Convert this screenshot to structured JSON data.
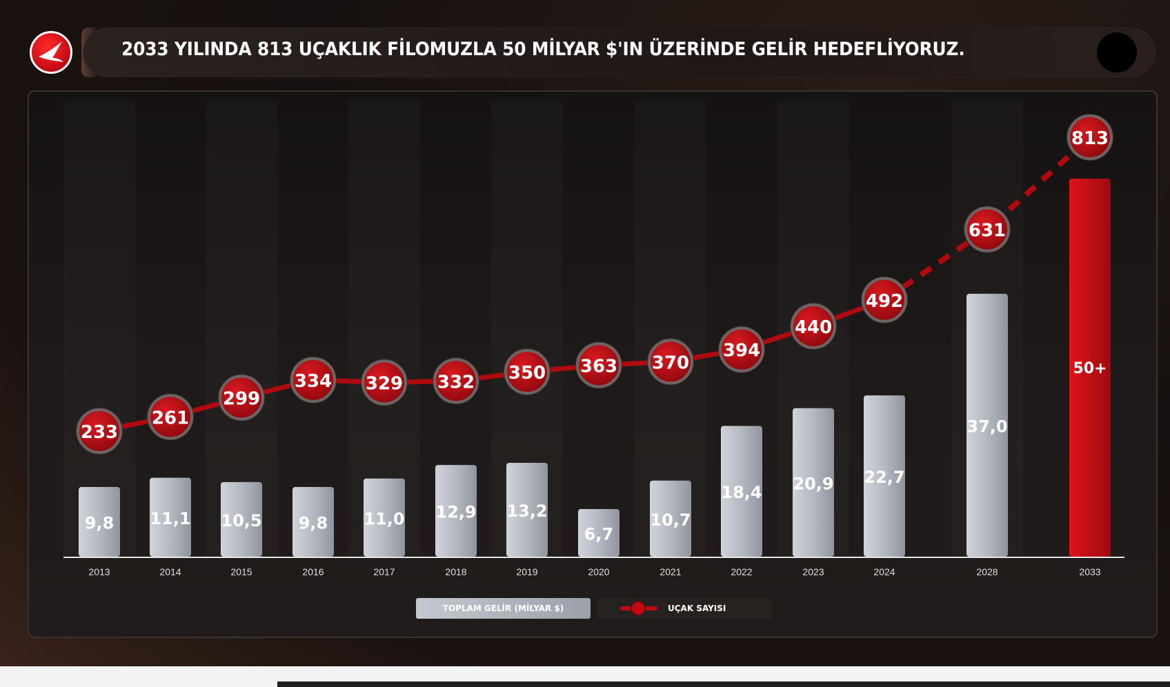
{
  "header": {
    "title": "2033 YILINDA 813 UÇAKLIK FİLOMUZLA 50 MİLYAR $'IN ÜZERİNDE GELİR HEDEFLİYORUZ."
  },
  "colors": {
    "accent_red": "#c30a12",
    "bar_gray": "#a9aeb8",
    "highlight_bar": "#d10f17"
  },
  "icons": {
    "logo": "airline-bird-logo-icon",
    "legend_line": "line-with-dot-icon"
  },
  "chart_data": {
    "type": "bar",
    "categories": [
      "2013",
      "2014",
      "2015",
      "2016",
      "2017",
      "2018",
      "2019",
      "2020",
      "2021",
      "2022",
      "2023",
      "2024",
      "2028",
      "2033"
    ],
    "title": "",
    "xlabel": "",
    "ylabel": "",
    "series": [
      {
        "name": "TOPLAM GELİR (MİLYAR $)",
        "type": "bar",
        "values": [
          9.8,
          11.1,
          10.5,
          9.8,
          11.0,
          12.9,
          13.2,
          6.7,
          10.7,
          18.4,
          20.9,
          22.7,
          37.0,
          50
        ],
        "labels": [
          "9,8",
          "11,1",
          "10,5",
          "9,8",
          "11,0",
          "12,9",
          "13,2",
          "6,7",
          "10,7",
          "18,4",
          "20,9",
          "22,7",
          "37,0",
          "50+"
        ],
        "highlight_index": 13
      },
      {
        "name": "UÇAK SAYISI",
        "type": "line",
        "values": [
          233,
          261,
          299,
          334,
          329,
          332,
          350,
          363,
          370,
          394,
          440,
          492,
          631,
          813
        ],
        "labels": [
          "233",
          "261",
          "299",
          "334",
          "329",
          "332",
          "350",
          "363",
          "370",
          "394",
          "440",
          "492",
          "631",
          "813"
        ],
        "dashed_from_index": 11
      }
    ],
    "legend": {
      "bar_label": "TOPLAM GELİR (MİLYAR $)",
      "line_label": "UÇAK SAYISI",
      "placement": "bottom-center"
    },
    "grid": false
  }
}
